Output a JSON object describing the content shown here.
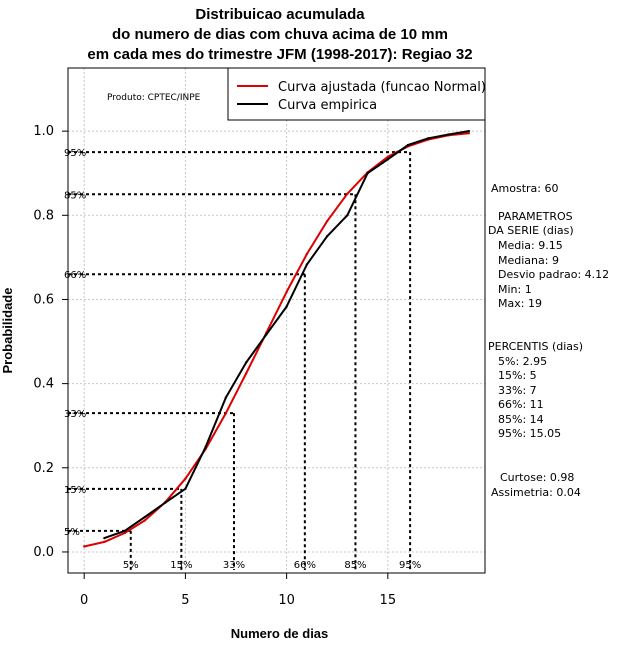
{
  "chart_data": {
    "type": "line",
    "title": [
      "Distribuicao acumulada",
      "do numero de dias com chuva acima de 10 mm",
      "em cada mes do trimestre JFM (1998-2017): Regiao 32"
    ],
    "xlabel": "Numero de dias",
    "ylabel": "Probabilidade",
    "xlim": [
      -0.8,
      19.8
    ],
    "ylim": [
      -0.05,
      1.15
    ],
    "x_ticks": [
      0,
      5,
      10,
      15
    ],
    "x_tick_labels": [
      "0",
      "5",
      "10",
      "15"
    ],
    "y_ticks": [
      0.0,
      0.2,
      0.4,
      0.6,
      0.8,
      1.0
    ],
    "y_tick_labels": [
      "0.0",
      "0.2",
      "0.4",
      "0.6",
      "0.8",
      "1.0"
    ],
    "grid": true,
    "legend_position": "top-right",
    "produto_label": "Produto: CPTEC/INPE",
    "series": [
      {
        "name": "Curva ajustada (funcao Normal)",
        "color": "#dd0000",
        "x": [
          0,
          1,
          2,
          3,
          4,
          5,
          6,
          7,
          8,
          9,
          10,
          11,
          12,
          13,
          14,
          15,
          16,
          17,
          18,
          19
        ],
        "y": [
          0.013,
          0.024,
          0.045,
          0.075,
          0.118,
          0.174,
          0.245,
          0.33,
          0.424,
          0.521,
          0.618,
          0.708,
          0.786,
          0.851,
          0.902,
          0.939,
          0.964,
          0.98,
          0.99,
          0.995
        ]
      },
      {
        "name": "Curva empirica",
        "color": "#000000",
        "x": [
          1,
          2,
          3,
          4,
          5,
          6,
          7,
          8,
          9,
          10,
          11,
          12,
          13,
          14,
          15,
          16,
          17,
          18,
          19
        ],
        "y": [
          0.033,
          0.05,
          0.083,
          0.117,
          0.15,
          0.25,
          0.367,
          0.45,
          0.517,
          0.583,
          0.683,
          0.75,
          0.8,
          0.9,
          0.933,
          0.967,
          0.983,
          0.992,
          1.0
        ]
      }
    ],
    "percentile_lines": [
      {
        "label": "5%",
        "prob": 0.05,
        "x": 2.3
      },
      {
        "label": "15%",
        "prob": 0.15,
        "x": 4.8
      },
      {
        "label": "33%",
        "prob": 0.33,
        "x": 7.4
      },
      {
        "label": "66%",
        "prob": 0.66,
        "x": 10.9
      },
      {
        "label": "85%",
        "prob": 0.85,
        "x": 13.4
      },
      {
        "label": "95%",
        "prob": 0.95,
        "x": 16.1
      }
    ]
  },
  "stats": {
    "amostra": "Amostra: 60",
    "parametros_title_1": "PARAMETROS",
    "parametros_title_2": "DA SERIE (dias)",
    "media": "Media: 9.15",
    "mediana": "Mediana: 9",
    "desvio": "Desvio padrao: 4.12",
    "min": "Min: 1",
    "max": "Max: 19",
    "percentis_title": "PERCENTIS (dias)",
    "p5": "5%: 2.95",
    "p15": "15%: 5",
    "p33": "33%: 7",
    "p66": "66%: 11",
    "p85": "85%: 14",
    "p95": "95%: 15.05",
    "curtose": "Curtose: 0.98",
    "assimetria": "Assimetria: 0.04"
  }
}
